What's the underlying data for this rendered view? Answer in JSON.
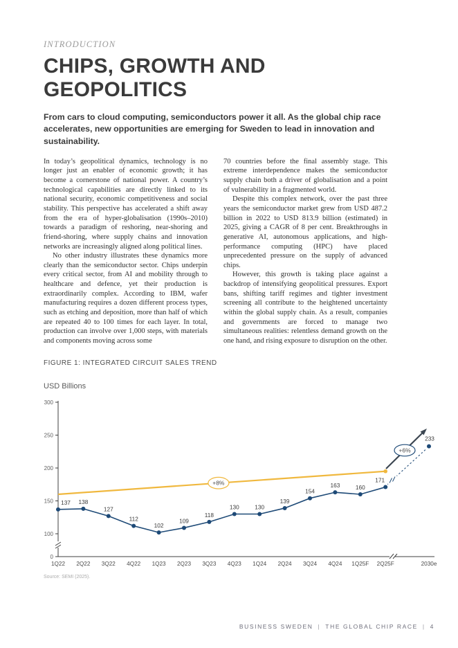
{
  "page": {
    "kicker": "INTRODUCTION",
    "title_line1": "CHIPS, GROWTH AND",
    "title_line2": "GEOPOLITICS",
    "lead": "From cars to cloud computing, semiconductors power it all. As the global chip race accelerates, new opportunities are emerging for Sweden to lead in innovation and sustainability.",
    "columns": {
      "left": [
        "In today’s geopolitical dynamics, technology is no longer just an enabler of economic growth; it has become a cornerstone of national power. A country’s technological capabilities are directly linked to its national security, economic competitiveness and social stability. This perspective has accelerated a shift away from the era of hyper-globalisation (1990s–2010) towards a paradigm of reshoring, near-shoring and friend-shoring, where supply chains and innovation networks are increasingly aligned along political lines.",
        "No other industry illustrates these dynamics more clearly than the semiconductor sector. Chips underpin every critical sector, from AI and mobility through to healthcare and defence, yet their production is extraordinarily complex. According to IBM, wafer manufacturing requires a dozen different process types, such as etching and deposition, more than half of which are repeated 40 to 100 times for each layer. In total, production can involve over 1,000 steps, with materials and components moving across some"
      ],
      "right": [
        "70 countries before the final assembly stage. This extreme interdependence makes the semiconductor supply chain both a driver of globalisation and a point of vulnerability in a fragmented world.",
        "Despite this complex network, over the past three years the semiconductor market grew from USD 487.2 billion in 2022 to USD 813.9 billion (estimated) in 2025, giving a CAGR of 8 per cent. Breakthroughs in generative AI, autonomous applications, and high-performance computing (HPC) have placed unprecedented pressure on the supply of advanced chips.",
        "However, this growth is taking place against a backdrop of intensifying geopolitical pressures. Export bans, shifting tariff regimes and tighter investment screening all contribute to the heightened uncertainty within the global supply chain. As a result, companies and governments are forced to manage two simultaneous realities: relentless demand growth on the one hand, and rising exposure to disruption on the other."
      ]
    },
    "figure": {
      "caption": "FIGURE 1: INTEGRATED CIRCUIT SALES TREND"
    },
    "footer": {
      "brand": "BUSINESS SWEDEN",
      "separator": "|",
      "report": "THE GLOBAL CHIP RACE",
      "page_number": "4"
    }
  },
  "chart_data": {
    "type": "line",
    "title": "FIGURE 1: INTEGRATED CIRCUIT SALES TREND",
    "ylabel": "USD Billions",
    "source": "Source: SEMI (2025).",
    "categories": [
      "1Q22",
      "2Q22",
      "3Q22",
      "4Q22",
      "1Q23",
      "2Q23",
      "3Q23",
      "4Q23",
      "1Q24",
      "2Q24",
      "3Q24",
      "4Q24",
      "1Q25F",
      "2Q25F"
    ],
    "values": [
      137,
      138,
      127,
      112,
      102,
      109,
      118,
      130,
      130,
      139,
      154,
      163,
      160,
      171
    ],
    "projection": {
      "label": "2030e",
      "value": 233,
      "style": "dashed"
    },
    "trend": {
      "label": "+8%",
      "start_value": 160,
      "end_value": 195
    },
    "arrow": {
      "label": "+6%"
    },
    "yticks": [
      300,
      250,
      200,
      150,
      100,
      0
    ],
    "ylim": [
      0,
      300
    ],
    "axis_break": true,
    "grid": false,
    "legend": "none",
    "colors": {
      "series": "#1e4a77",
      "trend": "#f0b83e",
      "arrow": "#3d4752"
    }
  }
}
